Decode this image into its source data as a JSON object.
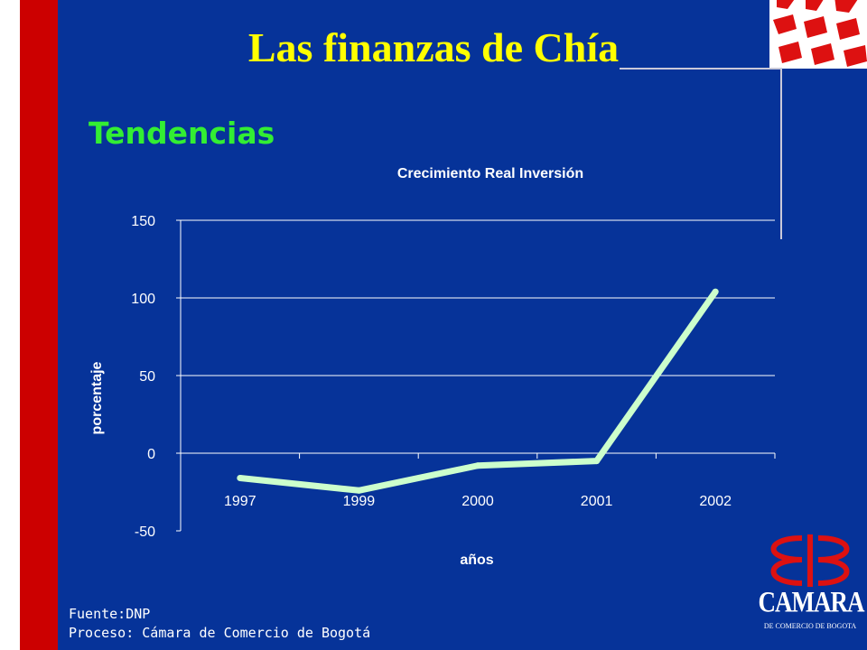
{
  "slide": {
    "title": "Las finanzas de Chía",
    "subtitle": "Tendencias",
    "source": {
      "label": "Fuente:",
      "value": "DNP",
      "process_label": "Proceso:",
      "process_value": "Cámara de Comercio de Bogotá"
    }
  },
  "logo": {
    "name": "CAMARA",
    "subtitle": "DE COMERCIO DE BOGOTA"
  },
  "colors": {
    "background": "#063399",
    "title": "#ffff00",
    "subtitle": "#33ee33",
    "line": "#ccffcc",
    "accent_red": "#cc0000"
  },
  "chart_data": {
    "type": "line",
    "title": "Crecimiento Real Inversión",
    "xlabel": "años",
    "ylabel": "porcentaje",
    "categories": [
      "1997",
      "1999",
      "2000",
      "2001",
      "2002"
    ],
    "series": [
      {
        "values": [
          -16,
          -24,
          -8,
          -5,
          104
        ]
      }
    ],
    "ylim": [
      -50,
      150
    ],
    "yticks": [
      -50,
      0,
      50,
      100,
      150
    ],
    "grid": true,
    "legend": "none"
  }
}
